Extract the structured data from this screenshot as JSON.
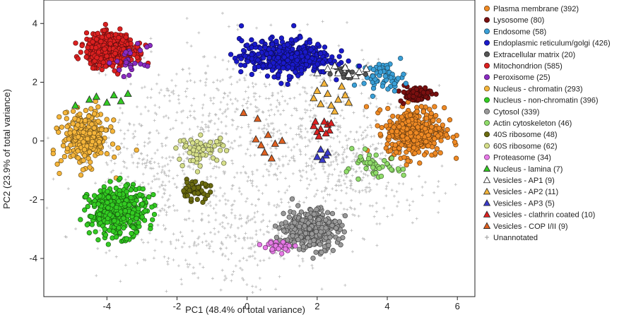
{
  "chart_data": {
    "type": "scatter",
    "title": "",
    "xlabel": "PC1 (48.4% of total variance)",
    "ylabel": "PC2 (23.9% of total variance)",
    "xlim": [
      -5.8,
      6.5
    ],
    "ylim": [
      -5.3,
      4.8
    ],
    "xticks": [
      -4,
      -2,
      0,
      2,
      4,
      6
    ],
    "yticks": [
      -4,
      -2,
      0,
      2,
      4
    ],
    "grid": false,
    "legend_position": "right",
    "note": "",
    "series": [
      {
        "name": "Plasma membrane (392)",
        "marker": "circle",
        "color": "#f08a24",
        "count": 392,
        "cx": 4.8,
        "cy": 0.3,
        "sx": 0.55,
        "sy": 0.55
      },
      {
        "name": "Lysosome (80)",
        "marker": "circle",
        "color": "#7a1010",
        "count": 80,
        "cx": 4.8,
        "cy": 1.6,
        "sx": 0.3,
        "sy": 0.18
      },
      {
        "name": "Endosome (58)",
        "marker": "circle",
        "color": "#3aa0d8",
        "count": 58,
        "cx": 3.9,
        "cy": 2.2,
        "sx": 0.4,
        "sy": 0.3
      },
      {
        "name": "Endoplasmic reticulum/golgi (426)",
        "marker": "circle",
        "color": "#1a1acc",
        "count": 426,
        "cx": 1.1,
        "cy": 2.85,
        "sx": 0.85,
        "sy": 0.4
      },
      {
        "name": "Extracellular matrix (20)",
        "marker": "circle",
        "color": "#555555",
        "count": 20,
        "cx": 2.8,
        "cy": 2.3,
        "sx": 0.3,
        "sy": 0.15
      },
      {
        "name": "Mitochondrion (585)",
        "marker": "circle",
        "color": "#dd2020",
        "count": 585,
        "cx": -3.9,
        "cy": 3.1,
        "sx": 0.45,
        "sy": 0.35
      },
      {
        "name": "Peroxisome (25)",
        "marker": "circle",
        "color": "#8a2bc2",
        "count": 25,
        "cx": -3.3,
        "cy": 2.7,
        "sx": 0.3,
        "sy": 0.35
      },
      {
        "name": "Nucleus - chromatin (293)",
        "marker": "circle",
        "color": "#f5b53a",
        "count": 293,
        "cx": -4.6,
        "cy": 0.1,
        "sx": 0.45,
        "sy": 0.6
      },
      {
        "name": "Nucleus - non-chromatin (396)",
        "marker": "circle",
        "color": "#33cc22",
        "count": 396,
        "cx": -3.7,
        "cy": -2.4,
        "sx": 0.55,
        "sy": 0.55
      },
      {
        "name": "Cytosol (339)",
        "marker": "circle",
        "color": "#999999",
        "count": 339,
        "cx": 1.8,
        "cy": -3.0,
        "sx": 0.55,
        "sy": 0.45
      },
      {
        "name": "Actin cytoskeleton (46)",
        "marker": "circle",
        "color": "#90dd6a",
        "count": 46,
        "cx": 3.6,
        "cy": -0.9,
        "sx": 0.55,
        "sy": 0.3
      },
      {
        "name": "40S ribosome (48)",
        "marker": "circle",
        "color": "#6b6b10",
        "count": 48,
        "cx": -1.5,
        "cy": -1.7,
        "sx": 0.3,
        "sy": 0.2
      },
      {
        "name": "60S ribosome (62)",
        "marker": "circle",
        "color": "#d6df8a",
        "count": 62,
        "cx": -1.3,
        "cy": -0.3,
        "sx": 0.45,
        "sy": 0.3
      },
      {
        "name": "Proteasome (34)",
        "marker": "circle",
        "color": "#e87ae8",
        "count": 34,
        "cx": 0.9,
        "cy": -3.6,
        "sx": 0.3,
        "sy": 0.12
      },
      {
        "name": "Nucleus - lamina (7)",
        "marker": "triangle",
        "color": "#33cc22",
        "count": 7,
        "points": [
          [
            -4.5,
            1.4
          ],
          [
            -4.3,
            1.5
          ],
          [
            -3.8,
            1.55
          ],
          [
            -3.4,
            1.6
          ],
          [
            -4.0,
            1.3
          ],
          [
            -3.6,
            1.35
          ],
          [
            -4.9,
            1.2
          ]
        ]
      },
      {
        "name": "Vesicles - AP1 (9)",
        "marker": "triangle",
        "color": "#ffffff",
        "count": 9,
        "points": [
          [
            2.3,
            2.45
          ],
          [
            2.6,
            2.3
          ],
          [
            2.9,
            2.25
          ],
          [
            3.1,
            2.2
          ],
          [
            3.4,
            2.45
          ],
          [
            2.5,
            2.55
          ],
          [
            2.0,
            2.3
          ],
          [
            2.8,
            2.5
          ],
          [
            3.2,
            2.35
          ]
        ]
      },
      {
        "name": "Vesicles - AP2 (11)",
        "marker": "triangle",
        "color": "#f5b53a",
        "count": 11,
        "points": [
          [
            2.0,
            1.7
          ],
          [
            2.3,
            1.6
          ],
          [
            2.6,
            1.4
          ],
          [
            2.9,
            1.3
          ],
          [
            2.1,
            1.25
          ],
          [
            2.4,
            1.2
          ],
          [
            2.7,
            1.85
          ],
          [
            2.2,
            1.95
          ],
          [
            2.5,
            1.0
          ],
          [
            1.9,
            1.45
          ],
          [
            2.8,
            1.55
          ]
        ]
      },
      {
        "name": "Vesicles - AP3 (5)",
        "marker": "triangle",
        "color": "#3a3acc",
        "count": 5,
        "points": [
          [
            2.1,
            -0.3
          ],
          [
            2.25,
            -0.5
          ],
          [
            2.15,
            -0.65
          ],
          [
            2.3,
            -0.4
          ],
          [
            2.0,
            -0.55
          ]
        ]
      },
      {
        "name": "Vesicles - clathrin coated (10)",
        "marker": "triangle",
        "color": "#dd2020",
        "count": 10,
        "points": [
          [
            1.9,
            0.5
          ],
          [
            2.1,
            0.4
          ],
          [
            2.3,
            0.55
          ],
          [
            2.0,
            0.3
          ],
          [
            2.2,
            0.65
          ],
          [
            1.95,
            0.65
          ],
          [
            2.35,
            0.35
          ],
          [
            2.25,
            0.25
          ],
          [
            2.05,
            0.15
          ],
          [
            2.4,
            0.6
          ]
        ]
      },
      {
        "name": "Vesicles - COP I/II (9)",
        "marker": "triangle",
        "color": "#e06020",
        "count": 9,
        "points": [
          [
            -0.1,
            0.95
          ],
          [
            0.3,
            0.75
          ],
          [
            0.6,
            0.2
          ],
          [
            0.8,
            -0.1
          ],
          [
            0.5,
            -0.4
          ],
          [
            0.7,
            -0.6
          ],
          [
            0.25,
            0.05
          ],
          [
            1.0,
            0.0
          ],
          [
            0.4,
            -0.15
          ]
        ]
      },
      {
        "name": "Unannotated",
        "marker": "plus",
        "color": "#bbbbbb",
        "count": 1500
      }
    ]
  }
}
